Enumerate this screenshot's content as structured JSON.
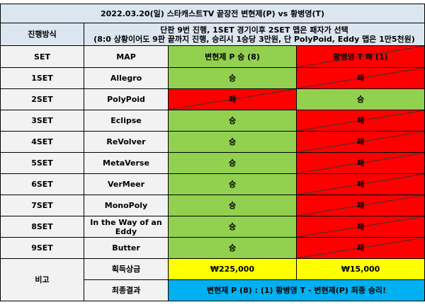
{
  "title": "2022.03.20(일) 스타캐스트TV 끝장전 변현제(P) vs 황병영(T)",
  "rules": {
    "label": "진행방식",
    "lines": [
      "단판 9번 진행, 1SET 경기이후 2SET 맵은 패자가 선택",
      "(8:0 상황이어도 9판 끝까지 진행, 승리시 1승당 3만원, 단 PolyPoid, Eddy 맵은 1만5천원)"
    ]
  },
  "header": {
    "cells": [
      "SET",
      "MAP",
      "변현제 P 승 (8)",
      "황병영 T 패 (1)"
    ],
    "colors": [
      "#92d050",
      "#ff0000"
    ],
    "struck": [
      false,
      true
    ]
  },
  "rows": [
    {
      "cells": [
        "1SET",
        "Allegro",
        "승",
        "패"
      ],
      "colors": [
        "#92d050",
        "#ff0000"
      ],
      "struck": [
        false,
        true
      ]
    },
    {
      "cells": [
        "2SET",
        "PolyPoid",
        "패",
        "승"
      ],
      "colors": [
        "#ff0000",
        "#92d050"
      ],
      "struck": [
        true,
        false
      ]
    },
    {
      "cells": [
        "3SET",
        "Eclipse",
        "승",
        "패"
      ],
      "colors": [
        "#92d050",
        "#ff0000"
      ],
      "struck": [
        false,
        true
      ]
    },
    {
      "cells": [
        "4SET",
        "ReVolver",
        "승",
        "패"
      ],
      "colors": [
        "#92d050",
        "#ff0000"
      ],
      "struck": [
        false,
        true
      ]
    },
    {
      "cells": [
        "5SET",
        "MetaVerse",
        "승",
        "패"
      ],
      "colors": [
        "#92d050",
        "#ff0000"
      ],
      "struck": [
        false,
        true
      ]
    },
    {
      "cells": [
        "6SET",
        "VerMeer",
        "승",
        "패"
      ],
      "colors": [
        "#92d050",
        "#ff0000"
      ],
      "struck": [
        false,
        true
      ]
    },
    {
      "cells": [
        "7SET",
        "MonoPoly",
        "승",
        "패"
      ],
      "colors": [
        "#92d050",
        "#ff0000"
      ],
      "struck": [
        false,
        true
      ]
    },
    {
      "cells": [
        "8SET",
        "In the Way of an Eddy",
        "승",
        "패"
      ],
      "colors": [
        "#92d050",
        "#ff0000"
      ],
      "struck": [
        false,
        true
      ]
    },
    {
      "cells": [
        "9SET",
        "Butter",
        "승",
        "패"
      ],
      "colors": [
        "#92d050",
        "#ff0000"
      ],
      "struck": [
        false,
        true
      ]
    }
  ],
  "footer": {
    "remark_label": "비고",
    "prize_label": "획득상금",
    "prizes": [
      "₩225,000",
      "₩15,000"
    ],
    "prize_color": "#ffff00",
    "final_label": "최종결과",
    "final_text": "변현제 P (8) : (1) 황병영 T - 변현제(P) 최종 승리!",
    "final_color": "#00b0f0"
  }
}
